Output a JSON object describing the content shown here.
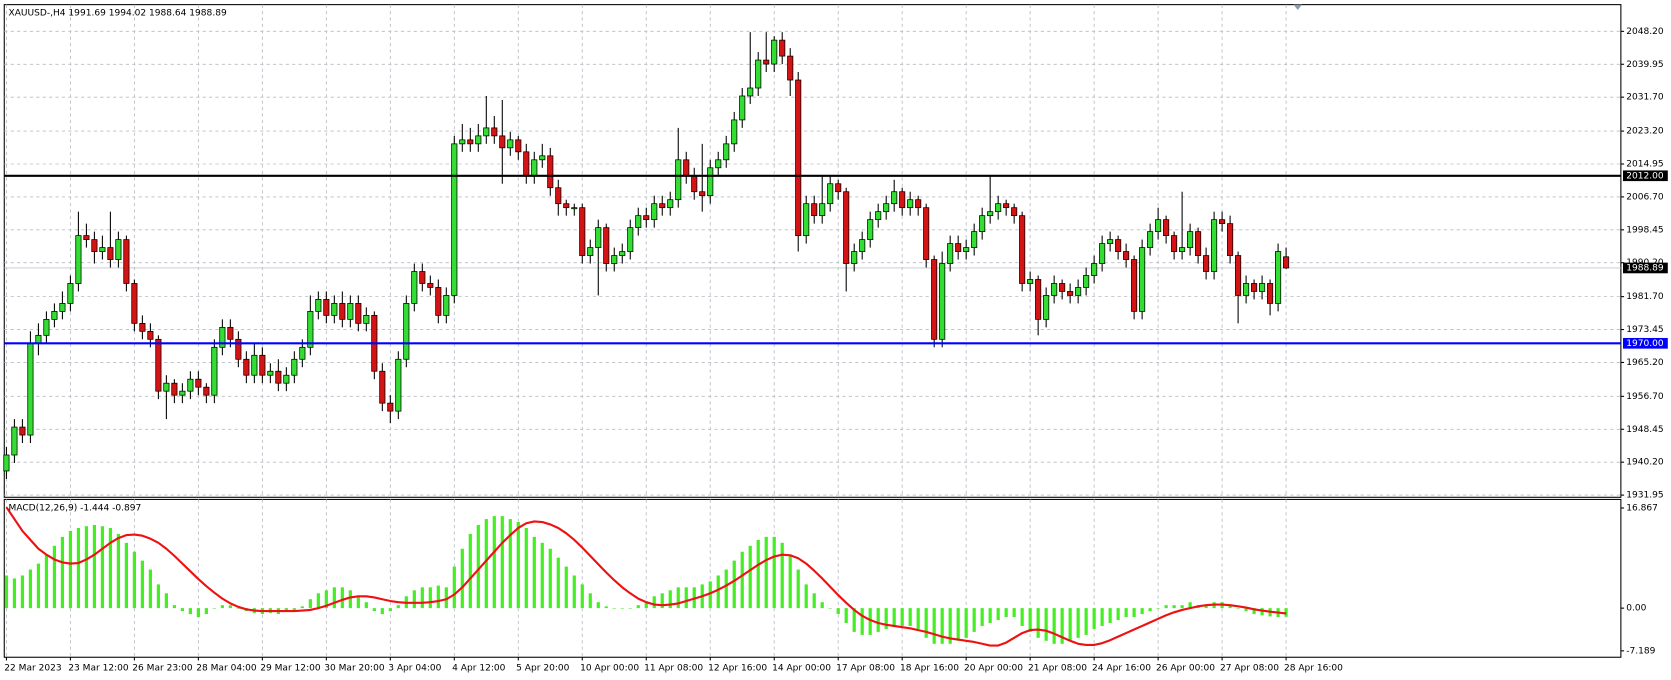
{
  "chart_data": [
    {
      "type": "candlestick",
      "title": "XAUUSD-,H4  1991.69 1994.02 1988.64 1988.89",
      "up_color": "#33dd33",
      "down_color": "#d41414",
      "xlim": [
        -0.27,
        201.86
      ],
      "ylim": [
        1931.4,
        2054.9
      ],
      "grid": true,
      "open": [
        1938,
        1942,
        1949,
        1947,
        1970,
        1972,
        1976,
        1978,
        1980,
        1985,
        1997,
        1996,
        1993,
        1994,
        1991,
        1996,
        1985,
        1975,
        1973,
        1971,
        1958,
        1960,
        1957,
        1958,
        1961,
        1959,
        1957,
        1969,
        1974,
        1971,
        1966,
        1962,
        1967,
        1962,
        1963,
        1960,
        1962,
        1966,
        1969,
        1978,
        1981,
        1977,
        1980,
        1976,
        1980,
        1975,
        1977,
        1963,
        1955,
        1953,
        1966,
        1980,
        1988,
        1985,
        1984,
        1977,
        1982,
        2020,
        2021,
        2020,
        2022,
        2024,
        2022,
        2019,
        2021,
        2018,
        2012,
        2016,
        2017,
        2009,
        2005,
        2004,
        2004,
        1992,
        1994,
        1999,
        1990,
        1992,
        1993,
        1999,
        2002,
        2001,
        2005,
        2004,
        2006,
        2016,
        2012,
        2008,
        2007,
        2014,
        2016,
        2020,
        2026,
        2032,
        2034,
        2041,
        2040,
        2046,
        2042,
        2036,
        1997,
        2005,
        2002,
        2005,
        2010,
        2008,
        1990,
        1993,
        1996,
        2001,
        2003,
        2005,
        2008,
        2004,
        2006,
        2004,
        1991,
        1971,
        1990,
        1995,
        1993,
        1994,
        1998,
        2002,
        2003,
        2005,
        2004,
        2002,
        1985,
        1986,
        1976,
        1982,
        1985,
        1983,
        1982,
        1984,
        1987,
        1990,
        1995,
        1996,
        1993,
        1991,
        1978,
        1994,
        1998,
        2001,
        1997,
        1993,
        1994,
        1998,
        1992,
        1988,
        2001,
        2000,
        1992,
        1982,
        1985,
        1983,
        1985,
        1980,
        1991.69
      ],
      "high": [
        1944,
        1951,
        1951,
        1973,
        1975,
        1978,
        1980,
        1983,
        1987,
        2003,
        2000,
        1998,
        1997,
        2003,
        1998,
        1997,
        1986,
        1977,
        1975,
        1972,
        1962,
        1961,
        1960,
        1963,
        1963,
        1960,
        1971,
        1976,
        1976,
        1973,
        1968,
        1970,
        1969,
        1965,
        1966,
        1964,
        1968,
        1971,
        1982,
        1983,
        1983,
        1982,
        1983,
        1982,
        1982,
        1979,
        1978,
        1965,
        1957,
        1968,
        1982,
        1990,
        1990,
        1987,
        1986,
        1984,
        2022,
        2025,
        2024,
        2025,
        2032,
        2027,
        2031,
        2023,
        2022,
        2020,
        2018,
        2020,
        2019,
        2011,
        2006,
        2005,
        2005,
        1996,
        2001,
        2000,
        1994,
        1995,
        2001,
        2004,
        2004,
        2007,
        2007,
        2008,
        2024,
        2018,
        2014,
        2020,
        2016,
        2018,
        2022,
        2028,
        2034,
        2048,
        2043,
        2048,
        2047,
        2048,
        2044,
        2038,
        2007,
        2007,
        2012,
        2012,
        2011,
        2009,
        1995,
        1998,
        2003,
        2005,
        2007,
        2011,
        2009,
        2008,
        2007,
        2005,
        1992,
        1993,
        1997,
        1997,
        1996,
        2000,
        2004,
        2012,
        2007,
        2006,
        2005,
        2003,
        1988,
        1987,
        1984,
        1987,
        1986,
        1985,
        1986,
        1989,
        1992,
        1997,
        1998,
        1997,
        1995,
        1992,
        1996,
        2000,
        2004,
        2002,
        1998,
        2008,
        2000,
        1999,
        1994,
        2003,
        2003,
        2002,
        1993,
        1987,
        1986,
        1987,
        1986,
        1995,
        1994.02
      ],
      "low": [
        1936,
        1940,
        1945,
        1945,
        1967,
        1970,
        1974,
        1976,
        1978,
        1983,
        1994,
        1990,
        1991,
        1989,
        1989,
        1983,
        1973,
        1971,
        1969,
        1956,
        1951,
        1955,
        1955,
        1956,
        1957,
        1955,
        1955,
        1967,
        1969,
        1964,
        1960,
        1960,
        1960,
        1960,
        1958,
        1958,
        1960,
        1964,
        1967,
        1976,
        1975,
        1975,
        1974,
        1974,
        1973,
        1973,
        1961,
        1953,
        1950,
        1951,
        1964,
        1978,
        1983,
        1982,
        1975,
        1975,
        1980,
        2018,
        2018,
        2018,
        2020,
        2020,
        2010,
        2017,
        2016,
        2010,
        2010,
        2014,
        2007,
        2002,
        2002,
        2002,
        1990,
        1990,
        1982,
        1988,
        1988,
        1990,
        1991,
        1997,
        1999,
        1999,
        2002,
        2002,
        2004,
        2010,
        2006,
        2003,
        2005,
        2012,
        2014,
        2018,
        2024,
        2030,
        2032,
        2038,
        2038,
        2040,
        2032,
        1993,
        1995,
        2000,
        2000,
        2003,
        2006,
        1983,
        1988,
        1991,
        1994,
        1999,
        2001,
        2003,
        2002,
        2002,
        2002,
        1989,
        1969,
        1969,
        1988,
        1991,
        1991,
        1992,
        1996,
        2000,
        2001,
        2002,
        2000,
        1983,
        1983,
        1972,
        1974,
        1980,
        1981,
        1980,
        1980,
        1982,
        1985,
        1988,
        1993,
        1991,
        1989,
        1976,
        1976,
        1992,
        1996,
        1995,
        1991,
        1991,
        1992,
        1990,
        1986,
        1986,
        1998,
        1990,
        1975,
        1980,
        1981,
        1981,
        1977,
        1978,
        1988.64
      ],
      "close": [
        1942,
        1949,
        1947,
        1970,
        1972,
        1976,
        1978,
        1980,
        1985,
        1997,
        1996,
        1993,
        1994,
        1991,
        1996,
        1985,
        1975,
        1973,
        1971,
        1958,
        1960,
        1957,
        1958,
        1961,
        1959,
        1957,
        1969,
        1974,
        1971,
        1966,
        1962,
        1967,
        1962,
        1963,
        1960,
        1962,
        1966,
        1969,
        1978,
        1981,
        1977,
        1980,
        1976,
        1980,
        1975,
        1977,
        1963,
        1955,
        1953,
        1966,
        1980,
        1988,
        1985,
        1984,
        1977,
        1982,
        2020,
        2021,
        2020,
        2022,
        2024,
        2022,
        2019,
        2021,
        2018,
        2012,
        2016,
        2017,
        2009,
        2005,
        2004,
        2004,
        1992,
        1994,
        1999,
        1990,
        1992,
        1993,
        1999,
        2002,
        2001,
        2005,
        2004,
        2006,
        2016,
        2012,
        2008,
        2007,
        2014,
        2016,
        2020,
        2026,
        2032,
        2034,
        2041,
        2040,
        2046,
        2042,
        2036,
        1997,
        2005,
        2002,
        2005,
        2010,
        2008,
        1990,
        1993,
        1996,
        2001,
        2003,
        2005,
        2008,
        2004,
        2006,
        2004,
        1991,
        1971,
        1990,
        1995,
        1993,
        1994,
        1998,
        2002,
        2003,
        2005,
        2004,
        2002,
        1985,
        1986,
        1976,
        1982,
        1985,
        1983,
        1982,
        1984,
        1987,
        1990,
        1995,
        1996,
        1993,
        1991,
        1978,
        1994,
        1998,
        2001,
        1997,
        1993,
        1994,
        1998,
        1992,
        1988,
        2001,
        2000,
        1992,
        1982,
        1985,
        1983,
        1985,
        1980,
        1993,
        1988.89
      ],
      "yticks": [
        {
          "value": 2048.2,
          "label": "2048.20"
        },
        {
          "value": 2039.95,
          "label": "2039.95"
        },
        {
          "value": 2031.7,
          "label": "2031.70"
        },
        {
          "value": 2023.2,
          "label": "2023.20"
        },
        {
          "value": 2014.95,
          "label": "2014.95"
        },
        {
          "value": 2006.7,
          "label": "2006.70"
        },
        {
          "value": 1998.45,
          "label": "1998.45"
        },
        {
          "value": 1990.2,
          "label": "1990.20"
        },
        {
          "value": 1981.7,
          "label": "1981.70"
        },
        {
          "value": 1973.45,
          "label": "1973.45"
        },
        {
          "value": 1965.2,
          "label": "1965.20"
        },
        {
          "value": 1956.7,
          "label": "1956.70"
        },
        {
          "value": 1948.45,
          "label": "1948.45"
        },
        {
          "value": 1940.2,
          "label": "1940.20"
        },
        {
          "value": 1931.95,
          "label": "1931.95"
        }
      ],
      "xticks": [
        {
          "value": 0,
          "label": "22 Mar 2023"
        },
        {
          "value": 8,
          "label": "23 Mar 12:00"
        },
        {
          "value": 16,
          "label": "26 Mar 23:00"
        },
        {
          "value": 24,
          "label": "28 Mar 04:00"
        },
        {
          "value": 32,
          "label": "29 Mar 12:00"
        },
        {
          "value": 40,
          "label": "30 Mar 20:00"
        },
        {
          "value": 48,
          "label": "3 Apr 04:00"
        },
        {
          "value": 56,
          "label": "4 Apr 12:00"
        },
        {
          "value": 64,
          "label": "5 Apr 20:00"
        },
        {
          "value": 72,
          "label": "10 Apr 00:00"
        },
        {
          "value": 80,
          "label": "11 Apr 08:00"
        },
        {
          "value": 88,
          "label": "12 Apr 16:00"
        },
        {
          "value": 96,
          "label": "14 Apr 00:00"
        },
        {
          "value": 104,
          "label": "17 Apr 08:00"
        },
        {
          "value": 112,
          "label": "18 Apr 16:00"
        },
        {
          "value": 120,
          "label": "20 Apr 00:00"
        },
        {
          "value": 128,
          "label": "21 Apr 08:00"
        },
        {
          "value": 136,
          "label": "24 Apr 16:00"
        },
        {
          "value": 144,
          "label": "26 Apr 00:00"
        },
        {
          "value": 152,
          "label": "27 Apr 08:00"
        },
        {
          "value": 160,
          "label": "28 Apr 16:00"
        }
      ],
      "hlines": [
        {
          "value": 2012,
          "label": "2012.00",
          "color": "#000000"
        },
        {
          "value": 1970,
          "label": "1970.00",
          "color": "#0000ff"
        }
      ],
      "price_label": {
        "value": 1988.89,
        "label": "1988.89",
        "color": "#000000"
      }
    },
    {
      "type": "macd",
      "title": "MACD(12,26,9) -1.444 -0.897",
      "xlim": [
        -0.27,
        201.86
      ],
      "ylim": [
        -8.27,
        18.31
      ],
      "yticks": [
        16.867,
        {
          "value": 0,
          "label": "0.00"
        },
        -7.189
      ],
      "series": [
        {
          "type": "bar",
          "color": "#44ee22",
          "values": [
            5.5,
            5,
            5.5,
            6.5,
            7.5,
            9,
            10.5,
            12,
            13,
            13.5,
            13.8,
            14,
            13.8,
            13.5,
            12.5,
            11,
            9.5,
            8,
            6.5,
            4,
            2.5,
            0.5,
            -0.5,
            -1,
            -1.5,
            -1,
            0,
            0.5,
            0.5,
            0,
            -0.5,
            -0.8,
            -1,
            -0.8,
            -1,
            -0.5,
            -0.3,
            0.3,
            1.5,
            2.5,
            3,
            3.5,
            3.5,
            3,
            2,
            1,
            -0.5,
            -1,
            -0.5,
            0.5,
            2,
            3,
            3.5,
            3.5,
            3.8,
            3.5,
            7,
            10,
            12.5,
            14,
            15,
            15.5,
            15.5,
            15,
            14.5,
            13.5,
            12,
            11,
            10,
            8.5,
            7,
            5.5,
            4,
            2.5,
            1,
            0.3,
            0,
            0,
            0,
            0.5,
            1,
            2,
            2.5,
            3,
            3.5,
            3.5,
            3.5,
            4,
            4.5,
            5.5,
            6.5,
            8,
            9.5,
            10.5,
            11.5,
            12,
            12,
            11,
            9,
            6.5,
            4,
            2.5,
            1,
            0,
            -1,
            -2.5,
            -4,
            -4.5,
            -4.5,
            -4,
            -3.5,
            -3.2,
            -3,
            -3,
            -3.5,
            -5,
            -6,
            -6,
            -6,
            -5.5,
            -5,
            -4,
            -3,
            -2.5,
            -2,
            -1.5,
            -1.5,
            -3,
            -4,
            -5,
            -5.5,
            -6,
            -6,
            -5.5,
            -5,
            -4.5,
            -3.5,
            -3,
            -2.5,
            -2,
            -1.5,
            -1.5,
            -1,
            -0.5,
            0,
            0.5,
            0.5,
            0.5,
            1,
            0.5,
            0.5,
            1,
            1,
            0.5,
            0,
            -0.5,
            -1,
            -1.2,
            -1.4,
            -1.5,
            -1.444
          ]
        },
        {
          "type": "line",
          "color": "#ee1111",
          "values": [
            17,
            15,
            13,
            11.5,
            10,
            9,
            8.2,
            7.7,
            7.5,
            7.6,
            8.2,
            9,
            10,
            11,
            11.8,
            12.3,
            12.4,
            12.2,
            11.7,
            11,
            10,
            8.8,
            7.5,
            6.2,
            4.9,
            3.7,
            2.6,
            1.6,
            0.8,
            0.2,
            -0.2,
            -0.4,
            -0.5,
            -0.5,
            -0.5,
            -0.5,
            -0.5,
            -0.4,
            -0.3,
            0,
            0.4,
            0.9,
            1.4,
            1.8,
            2,
            2,
            1.8,
            1.5,
            1.2,
            1,
            0.9,
            0.9,
            0.9,
            1,
            1.2,
            1.5,
            2.3,
            3.5,
            5,
            6.5,
            8,
            9.5,
            11,
            12.3,
            13.5,
            14.3,
            14.6,
            14.5,
            14.1,
            13.5,
            12.6,
            11.5,
            10.2,
            8.8,
            7.4,
            6,
            4.7,
            3.5,
            2.5,
            1.6,
            1,
            0.6,
            0.5,
            0.6,
            0.8,
            1.2,
            1.6,
            2,
            2.5,
            3.1,
            3.8,
            4.6,
            5.5,
            6.4,
            7.3,
            8.1,
            8.7,
            9,
            8.9,
            8.4,
            7.5,
            6.3,
            5,
            3.6,
            2.2,
            0.9,
            -0.3,
            -1.3,
            -2,
            -2.5,
            -2.8,
            -3,
            -3.2,
            -3.4,
            -3.7,
            -4,
            -4.4,
            -4.8,
            -5.1,
            -5.3,
            -5.5,
            -5.7,
            -6,
            -6.3,
            -6.3,
            -5.8,
            -5,
            -4.2,
            -3.7,
            -3.6,
            -3.8,
            -4.3,
            -4.9,
            -5.5,
            -6,
            -6.2,
            -6.2,
            -5.9,
            -5.4,
            -4.8,
            -4.2,
            -3.6,
            -3,
            -2.4,
            -1.8,
            -1.2,
            -0.7,
            -0.3,
            0,
            0.3,
            0.5,
            0.6,
            0.6,
            0.5,
            0.3,
            0.1,
            -0.2,
            -0.4,
            -0.6,
            -0.75,
            -0.897
          ]
        }
      ]
    }
  ]
}
